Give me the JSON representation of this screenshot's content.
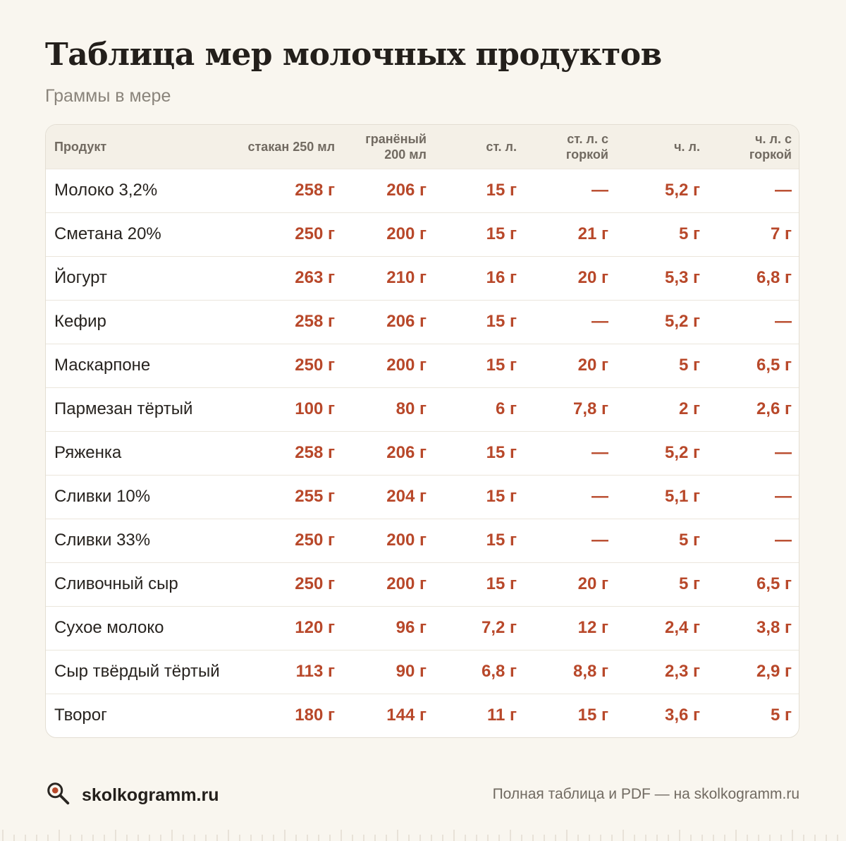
{
  "title": "Таблица мер молочных продуктов",
  "subtitle": "Граммы в мере",
  "table": {
    "headers": [
      "Продукт",
      "стакан 250 мл",
      "гранёный 200 мл",
      "ст. л.",
      "ст. л. с горкой",
      "ч. л.",
      "ч. л. с горкой"
    ],
    "rows": [
      [
        "Молоко 3,2%",
        "258 г",
        "206 г",
        "15 г",
        "—",
        "5,2 г",
        "—"
      ],
      [
        "Сметана 20%",
        "250 г",
        "200 г",
        "15 г",
        "21 г",
        "5 г",
        "7 г"
      ],
      [
        "Йогурт",
        "263 г",
        "210 г",
        "16 г",
        "20 г",
        "5,3 г",
        "6,8 г"
      ],
      [
        "Кефир",
        "258 г",
        "206 г",
        "15 г",
        "—",
        "5,2 г",
        "—"
      ],
      [
        "Маскарпоне",
        "250 г",
        "200 г",
        "15 г",
        "20 г",
        "5 г",
        "6,5 г"
      ],
      [
        "Пармезан тёртый",
        "100 г",
        "80 г",
        "6 г",
        "7,8 г",
        "2 г",
        "2,6 г"
      ],
      [
        "Ряженка",
        "258 г",
        "206 г",
        "15 г",
        "—",
        "5,2 г",
        "—"
      ],
      [
        "Сливки 10%",
        "255 г",
        "204 г",
        "15 г",
        "—",
        "5,1 г",
        "—"
      ],
      [
        "Сливки 33%",
        "250 г",
        "200 г",
        "15 г",
        "—",
        "5 г",
        "—"
      ],
      [
        "Сливочный сыр",
        "250 г",
        "200 г",
        "15 г",
        "20 г",
        "5 г",
        "6,5 г"
      ],
      [
        "Сухое молоко",
        "120 г",
        "96 г",
        "7,2 г",
        "12 г",
        "2,4 г",
        "3,8 г"
      ],
      [
        "Сыр твёрдый тёртый",
        "113 г",
        "90 г",
        "6,8 г",
        "8,8 г",
        "2,3 г",
        "2,9 г"
      ],
      [
        "Творог",
        "180 г",
        "144 г",
        "11 г",
        "15 г",
        "3,6 г",
        "5 г"
      ]
    ]
  },
  "footer": {
    "logo_icon": "magnifier-icon",
    "site": "skolkogramm.ru",
    "note": "Полная таблица и PDF — на skolkogramm.ru"
  },
  "colors": {
    "background": "#f9f6ef",
    "accent": "#b8482a",
    "header_bg": "#f4f0e7"
  }
}
